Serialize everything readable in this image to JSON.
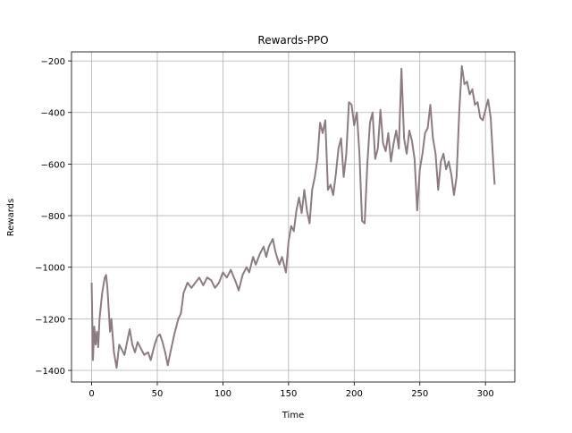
{
  "chart_data": {
    "type": "line",
    "title": "Rewards-PPO",
    "x_label": "Time",
    "y_label": "Rewards",
    "x": [
      0,
      1,
      2,
      3,
      4,
      5,
      6,
      8,
      10,
      11,
      12,
      14,
      15,
      17,
      19,
      21,
      23,
      25,
      27,
      29,
      31,
      33,
      35,
      37,
      40,
      43,
      45,
      48,
      50,
      52,
      54,
      56,
      58,
      60,
      63,
      66,
      68,
      70,
      73,
      76,
      79,
      82,
      85,
      88,
      91,
      94,
      97,
      100,
      103,
      106,
      110,
      112,
      115,
      118,
      120,
      123,
      125,
      128,
      131,
      133,
      135,
      138,
      140,
      143,
      145,
      148,
      150,
      152,
      154,
      156,
      158,
      160,
      162,
      164,
      166,
      168,
      170,
      172,
      174,
      176,
      178,
      180,
      182,
      184,
      186,
      188,
      190,
      192,
      194,
      196,
      198,
      200,
      202,
      204,
      206,
      208,
      210,
      212,
      214,
      216,
      218,
      220,
      222,
      224,
      226,
      228,
      230,
      232,
      234,
      236,
      238,
      240,
      242,
      244,
      246,
      248,
      250,
      252,
      254,
      256,
      258,
      260,
      262,
      264,
      266,
      268,
      270,
      272,
      274,
      276,
      278,
      280,
      282,
      284,
      286,
      288,
      290,
      292,
      294,
      296,
      298,
      300,
      302,
      304,
      306,
      307
    ],
    "series": [
      {
        "name": "Rewards",
        "color": "#8c7c80",
        "values": [
          -1060,
          -1360,
          -1230,
          -1300,
          -1250,
          -1310,
          -1200,
          -1100,
          -1040,
          -1030,
          -1080,
          -1250,
          -1200,
          -1330,
          -1390,
          -1300,
          -1320,
          -1340,
          -1290,
          -1240,
          -1300,
          -1330,
          -1290,
          -1310,
          -1340,
          -1330,
          -1360,
          -1300,
          -1270,
          -1260,
          -1290,
          -1330,
          -1380,
          -1330,
          -1260,
          -1200,
          -1180,
          -1100,
          -1060,
          -1080,
          -1060,
          -1040,
          -1070,
          -1040,
          -1050,
          -1080,
          -1060,
          -1020,
          -1040,
          -1010,
          -1060,
          -1090,
          -1030,
          -1000,
          -1020,
          -960,
          -990,
          -950,
          -920,
          -960,
          -920,
          -890,
          -940,
          -990,
          -960,
          -1020,
          -900,
          -840,
          -860,
          -780,
          -730,
          -790,
          -700,
          -780,
          -830,
          -700,
          -650,
          -580,
          -440,
          -480,
          -430,
          -700,
          -680,
          -720,
          -640,
          -540,
          -500,
          -650,
          -560,
          -360,
          -370,
          -450,
          -400,
          -560,
          -820,
          -830,
          -600,
          -440,
          -400,
          -580,
          -540,
          -390,
          -520,
          -550,
          -480,
          -590,
          -520,
          -470,
          -540,
          -230,
          -500,
          -560,
          -470,
          -510,
          -580,
          -780,
          -620,
          -560,
          -480,
          -460,
          -370,
          -500,
          -560,
          -700,
          -590,
          -560,
          -620,
          -590,
          -640,
          -720,
          -650,
          -400,
          -220,
          -290,
          -280,
          -330,
          -310,
          -370,
          -360,
          -420,
          -430,
          -390,
          -350,
          -420,
          -600,
          -680
        ]
      }
    ],
    "xlim": [
      -15.35,
      322.35
    ],
    "ylim": [
      -1445,
      -165
    ],
    "xticks": [
      0,
      50,
      100,
      150,
      200,
      250,
      300
    ],
    "yticks": [
      {
        "value": -1400,
        "label": "−1400"
      },
      {
        "value": -1200,
        "label": "−1200"
      },
      {
        "value": -1000,
        "label": "−1000"
      },
      {
        "value": -800,
        "label": "−800"
      },
      {
        "value": -600,
        "label": "−600"
      },
      {
        "value": -400,
        "label": "−400"
      },
      {
        "value": -200,
        "label": "−200"
      }
    ],
    "grid": true
  }
}
